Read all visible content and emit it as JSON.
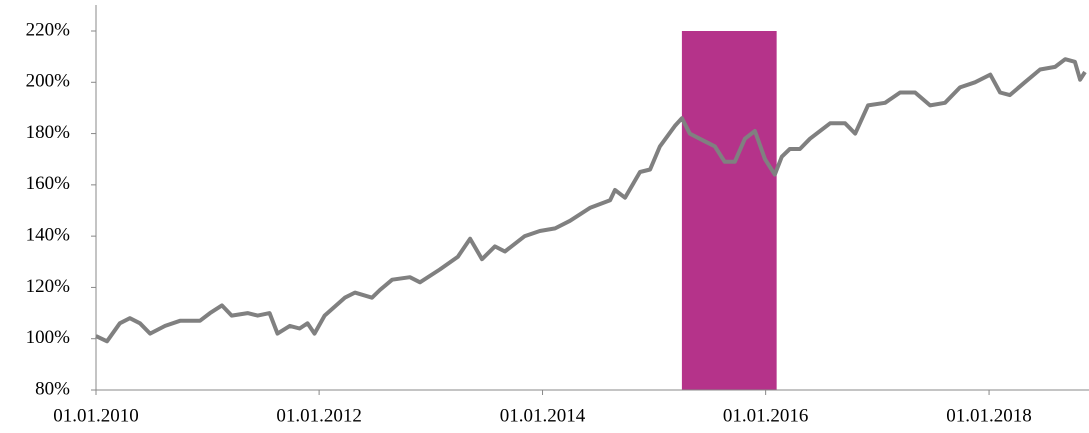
{
  "chart_data": {
    "type": "line",
    "x": [
      "2010-01-01",
      "2010-02-06",
      "2010-03-20",
      "2010-04-22",
      "2010-05-25",
      "2010-06-27",
      "2010-08-15",
      "2010-10-03",
      "2010-12-07",
      "2011-01-09",
      "2011-02-17",
      "2011-03-21",
      "2011-05-12",
      "2011-06-14",
      "2011-07-23",
      "2011-08-18",
      "2011-09-27",
      "2011-10-29",
      "2011-11-24",
      "2011-12-17",
      "2012-01-19",
      "2012-03-25",
      "2012-04-27",
      "2012-06-22",
      "2012-07-18",
      "2012-08-27",
      "2012-10-24",
      "2012-11-26",
      "2013-01-30",
      "2013-03-30",
      "2013-05-09",
      "2013-06-17",
      "2013-07-29",
      "2013-08-31",
      "2013-11-04",
      "2013-12-23",
      "2014-02-11",
      "2014-04-01",
      "2014-06-05",
      "2014-08-10",
      "2014-08-26",
      "2014-09-28",
      "2014-11-16",
      "2014-12-19",
      "2015-01-20",
      "2015-03-10",
      "2015-04-02",
      "2015-04-28",
      "2015-06-16",
      "2015-07-19",
      "2015-08-20",
      "2015-09-22",
      "2015-10-25",
      "2015-11-27",
      "2015-12-30",
      "2016-01-31",
      "2016-02-23",
      "2016-03-20",
      "2016-04-22",
      "2016-05-25",
      "2016-07-30",
      "2016-09-17",
      "2016-10-20",
      "2016-12-01",
      "2017-01-26",
      "2017-03-16",
      "2017-05-04",
      "2017-06-22",
      "2017-08-10",
      "2017-09-28",
      "2017-11-16",
      "2018-01-05",
      "2018-02-06",
      "2018-03-10",
      "2018-04-28",
      "2018-06-17",
      "2018-08-05",
      "2018-09-07",
      "2018-10-09",
      "2018-10-26",
      "2018-11-11"
    ],
    "series": [
      {
        "color": "#808080",
        "values": [
          101,
          99,
          106,
          108,
          106,
          102,
          105,
          107,
          107,
          110,
          113,
          109,
          110,
          109,
          110,
          102,
          105,
          104,
          106,
          102,
          109,
          116,
          118,
          116,
          119,
          123,
          124,
          122,
          127,
          132,
          139,
          131,
          136,
          134,
          140,
          142,
          143,
          146,
          151,
          154,
          158,
          155,
          165,
          166,
          175,
          183,
          186,
          180,
          177,
          175,
          169,
          169,
          178,
          181,
          170,
          164,
          171,
          174,
          174,
          178,
          184,
          184,
          180,
          191,
          192,
          196,
          196,
          191,
          192,
          198,
          200,
          203,
          196,
          195,
          200,
          205,
          206,
          209,
          208,
          201,
          204
        ]
      }
    ],
    "highlight": {
      "start": "2015-04-02",
      "end": "2016-02-06",
      "color": "#b5338a"
    },
    "xlim": [
      "2010-01-01",
      "2018-11-24"
    ],
    "xticks": [
      {
        "value": "2010-01-01",
        "label": "01.01.2010"
      },
      {
        "value": "2012-01-01",
        "label": "01.01.2012"
      },
      {
        "value": "2014-01-01",
        "label": "01.01.2014"
      },
      {
        "value": "2016-01-01",
        "label": "01.01.2016"
      },
      {
        "value": "2018-01-01",
        "label": "01.01.2018"
      }
    ],
    "ylim": [
      80,
      220
    ],
    "yticks": [
      {
        "value": 80,
        "label": "80%"
      },
      {
        "value": 100,
        "label": "100%"
      },
      {
        "value": 120,
        "label": "120%"
      },
      {
        "value": 140,
        "label": "140%"
      },
      {
        "value": 160,
        "label": "160%"
      },
      {
        "value": 180,
        "label": "180%"
      },
      {
        "value": 200,
        "label": "200%"
      },
      {
        "value": 220,
        "label": "220%"
      }
    ]
  }
}
